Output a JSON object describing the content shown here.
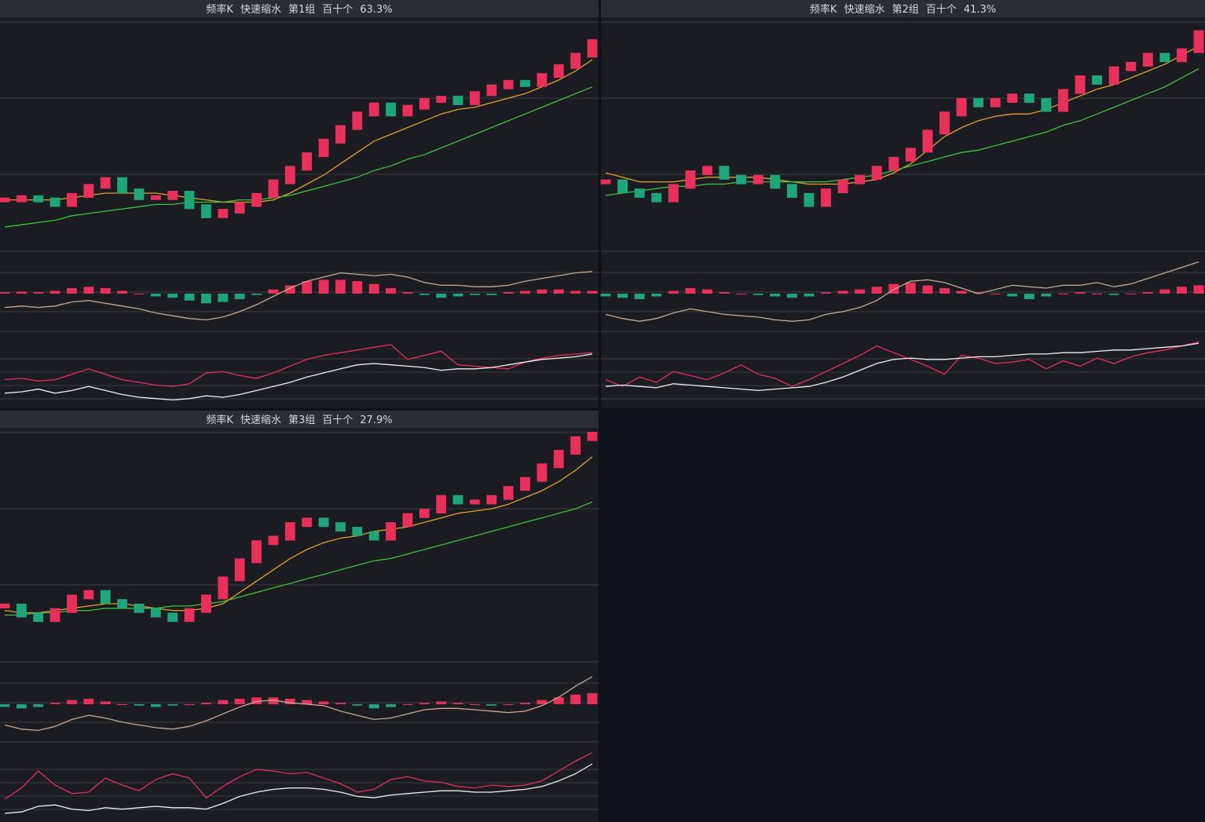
{
  "panels": [
    {
      "title": [
        "频率K",
        "快速缩水",
        "第1组",
        "百十个",
        "63.3%"
      ],
      "price": {
        "ylim": [
          0,
          100
        ],
        "up_color": "#e8305a",
        "down_color": "#1fa57a",
        "values": [
          22,
          23,
          22,
          20,
          24,
          28,
          31,
          26,
          23,
          23,
          25,
          19,
          15,
          17,
          20,
          24,
          30,
          36,
          42,
          48,
          54,
          60,
          64,
          60,
          63,
          66,
          67,
          65,
          69,
          72,
          74,
          73,
          77,
          81,
          86,
          92
        ]
      },
      "ma": [
        {
          "color": "#e0a030",
          "values": [
            22,
            22,
            22,
            22,
            23,
            24,
            25,
            25,
            25,
            25,
            24,
            23,
            22,
            21,
            21,
            21,
            22,
            25,
            29,
            33,
            38,
            43,
            48,
            51,
            54,
            57,
            60,
            62,
            63,
            65,
            67,
            69,
            72,
            75,
            79,
            84
          ]
        },
        {
          "color": "#40c040",
          "values": [
            10,
            11,
            12,
            13,
            15,
            16,
            17,
            18,
            19,
            20,
            20,
            21,
            21,
            21,
            22,
            22,
            23,
            24,
            26,
            28,
            30,
            32,
            35,
            37,
            40,
            42,
            45,
            48,
            51,
            54,
            57,
            60,
            63,
            66,
            69,
            72
          ]
        }
      ],
      "hist": {
        "ylim": [
          -50,
          50
        ],
        "values": [
          2,
          3,
          2,
          4,
          8,
          10,
          8,
          4,
          0,
          -4,
          -6,
          -10,
          -14,
          -12,
          -8,
          -2,
          6,
          12,
          18,
          20,
          20,
          18,
          14,
          8,
          2,
          -2,
          -6,
          -4,
          -2,
          -2,
          2,
          4,
          6,
          6,
          4,
          4
        ]
      },
      "dif": {
        "ylim": [
          0,
          100
        ],
        "color": "#c8a890",
        "values": [
          30,
          32,
          30,
          32,
          38,
          40,
          36,
          32,
          28,
          22,
          18,
          14,
          12,
          16,
          24,
          34,
          46,
          58,
          68,
          74,
          80,
          78,
          76,
          78,
          74,
          66,
          62,
          62,
          60,
          60,
          62,
          68,
          72,
          76,
          80,
          82
        ]
      },
      "kdj": {
        "ylim": [
          0,
          100
        ],
        "series": [
          {
            "color": "#e0305a",
            "values": [
              40,
              42,
              38,
              40,
              48,
              56,
              48,
              40,
              36,
              32,
              30,
              34,
              50,
              52,
              46,
              42,
              50,
              60,
              70,
              76,
              80,
              84,
              88,
              92,
              70,
              76,
              82,
              62,
              60,
              58,
              56,
              66,
              72,
              76,
              78,
              80
            ]
          },
          {
            "color": "#f0f0f0",
            "values": [
              20,
              22,
              26,
              20,
              24,
              30,
              24,
              18,
              14,
              12,
              10,
              12,
              16,
              14,
              18,
              24,
              30,
              36,
              44,
              50,
              56,
              62,
              64,
              62,
              60,
              58,
              54,
              56,
              56,
              58,
              62,
              66,
              70,
              72,
              74,
              78
            ]
          }
        ]
      }
    },
    {
      "title": [
        "频率K",
        "快速缩水",
        "第2组",
        "百十个",
        "41.3%"
      ],
      "price": {
        "ylim": [
          0,
          100
        ],
        "up_color": "#e8305a",
        "down_color": "#1fa57a",
        "values": [
          30,
          26,
          24,
          22,
          28,
          34,
          36,
          32,
          30,
          32,
          28,
          24,
          20,
          26,
          30,
          32,
          36,
          40,
          44,
          52,
          60,
          66,
          64,
          66,
          68,
          66,
          62,
          70,
          76,
          74,
          80,
          82,
          86,
          84,
          88,
          96
        ]
      },
      "ma": [
        {
          "color": "#e0a030",
          "values": [
            34,
            32,
            30,
            30,
            30,
            31,
            32,
            32,
            32,
            32,
            31,
            30,
            29,
            29,
            29,
            30,
            31,
            34,
            38,
            44,
            50,
            54,
            57,
            59,
            60,
            60,
            62,
            65,
            68,
            71,
            73,
            76,
            79,
            82,
            86,
            90
          ]
        },
        {
          "color": "#40c040",
          "values": [
            24,
            25,
            26,
            27,
            28,
            28,
            29,
            29,
            30,
            30,
            30,
            30,
            30,
            30,
            31,
            32,
            33,
            35,
            37,
            39,
            41,
            43,
            44,
            46,
            48,
            50,
            52,
            55,
            57,
            60,
            63,
            66,
            69,
            72,
            76,
            80
          ]
        }
      ],
      "hist": {
        "ylim": [
          -50,
          50
        ],
        "values": [
          -4,
          -6,
          -8,
          -4,
          4,
          8,
          6,
          2,
          0,
          -2,
          -4,
          -6,
          -4,
          2,
          4,
          6,
          10,
          14,
          16,
          12,
          8,
          4,
          2,
          0,
          -4,
          -8,
          -4,
          0,
          2,
          0,
          -2,
          0,
          2,
          6,
          10,
          12
        ]
      },
      "dif": {
        "ylim": [
          0,
          100
        ],
        "color": "#c8a890",
        "values": [
          20,
          14,
          10,
          14,
          22,
          28,
          24,
          20,
          18,
          16,
          12,
          10,
          12,
          20,
          24,
          30,
          40,
          56,
          68,
          70,
          66,
          58,
          50,
          56,
          62,
          60,
          58,
          62,
          62,
          66,
          60,
          64,
          72,
          80,
          88,
          96
        ]
      },
      "kdj": {
        "ylim": [
          0,
          100
        ],
        "series": [
          {
            "color": "#e0305a",
            "values": [
              40,
              30,
              44,
              36,
              52,
              46,
              40,
              50,
              62,
              48,
              42,
              30,
              40,
              52,
              64,
              76,
              90,
              80,
              70,
              60,
              48,
              76,
              72,
              64,
              66,
              70,
              56,
              68,
              60,
              72,
              64,
              74,
              80,
              84,
              90,
              96
            ]
          },
          {
            "color": "#f0f0f0",
            "values": [
              30,
              32,
              30,
              28,
              34,
              32,
              30,
              28,
              26,
              24,
              26,
              28,
              30,
              36,
              44,
              54,
              64,
              70,
              72,
              70,
              70,
              72,
              74,
              74,
              76,
              78,
              78,
              80,
              80,
              82,
              84,
              84,
              86,
              88,
              90,
              94
            ]
          }
        ]
      }
    },
    {
      "title": [
        "频率K",
        "快速缩水",
        "第3组",
        "百十个",
        "27.9%"
      ],
      "price": {
        "ylim": [
          0,
          100
        ],
        "up_color": "#e8305a",
        "down_color": "#1fa57a",
        "values": [
          24,
          20,
          18,
          22,
          28,
          30,
          26,
          24,
          22,
          20,
          18,
          22,
          28,
          36,
          44,
          52,
          54,
          60,
          62,
          60,
          58,
          56,
          54,
          60,
          64,
          66,
          72,
          70,
          70,
          72,
          76,
          80,
          86,
          92,
          98,
          100
        ]
      },
      "ma": [
        {
          "color": "#e0a030",
          "values": [
            22,
            21,
            21,
            22,
            23,
            24,
            25,
            25,
            24,
            23,
            22,
            22,
            23,
            25,
            30,
            35,
            40,
            45,
            49,
            52,
            54,
            55,
            57,
            58,
            59,
            61,
            63,
            65,
            66,
            67,
            69,
            72,
            75,
            79,
            84,
            90
          ]
        },
        {
          "color": "#40c040",
          "values": [
            20,
            20,
            21,
            21,
            22,
            22,
            23,
            23,
            23,
            23,
            24,
            24,
            25,
            26,
            28,
            30,
            32,
            34,
            36,
            38,
            40,
            42,
            44,
            45,
            47,
            49,
            51,
            53,
            55,
            57,
            59,
            61,
            63,
            65,
            67,
            70
          ]
        }
      ],
      "hist": {
        "ylim": [
          -50,
          50
        ],
        "values": [
          -4,
          -6,
          -4,
          2,
          6,
          8,
          4,
          0,
          -2,
          -4,
          -2,
          0,
          2,
          6,
          8,
          10,
          10,
          8,
          6,
          4,
          2,
          -2,
          -6,
          -4,
          0,
          2,
          4,
          2,
          0,
          -2,
          0,
          2,
          6,
          10,
          14,
          16
        ]
      },
      "dif": {
        "ylim": [
          0,
          100
        ],
        "color": "#c8a890",
        "values": [
          20,
          14,
          12,
          18,
          28,
          34,
          30,
          24,
          20,
          16,
          14,
          18,
          26,
          36,
          46,
          54,
          56,
          52,
          50,
          48,
          40,
          34,
          28,
          30,
          36,
          42,
          44,
          44,
          42,
          40,
          38,
          40,
          48,
          60,
          76,
          90
        ]
      },
      "kdj": {
        "ylim": [
          0,
          100
        ],
        "series": [
          {
            "color": "#e0305a",
            "values": [
              30,
              46,
              70,
              50,
              38,
              40,
              60,
              50,
              42,
              58,
              66,
              60,
              32,
              48,
              62,
              72,
              70,
              66,
              68,
              60,
              52,
              40,
              44,
              58,
              62,
              56,
              54,
              48,
              46,
              50,
              48,
              50,
              56,
              70,
              84,
              96
            ]
          },
          {
            "color": "#f0f0f0",
            "values": [
              10,
              12,
              20,
              22,
              16,
              14,
              18,
              16,
              18,
              20,
              18,
              18,
              16,
              24,
              34,
              40,
              44,
              46,
              46,
              44,
              40,
              34,
              32,
              36,
              38,
              40,
              42,
              42,
              40,
              40,
              42,
              44,
              48,
              56,
              66,
              80
            ]
          }
        ]
      }
    }
  ]
}
